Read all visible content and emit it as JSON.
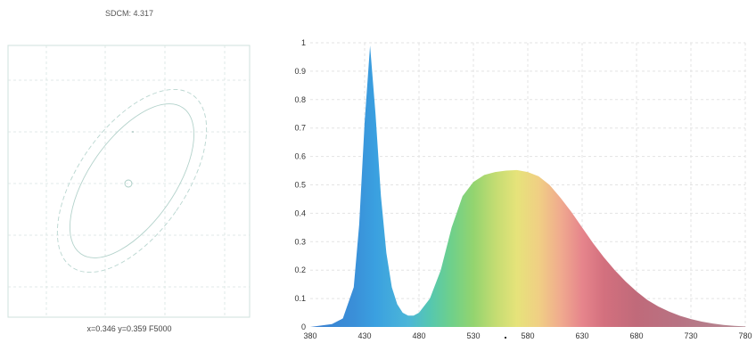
{
  "sdcm_panel": {
    "title": "SDCM: 4.317",
    "coordinate_label": "x=0.346 y=0.359 F5000"
  },
  "chart_data": {
    "type": "area",
    "x_ticks": [
      "380",
      "430",
      "480",
      "530",
      "580",
      "630",
      "680",
      "730",
      "780"
    ],
    "y_ticks": [
      "0",
      "0.1",
      "0.2",
      "0.3",
      "0.4",
      "0.5",
      "0.6",
      "0.7",
      "0.8",
      "0.9",
      "1"
    ],
    "xlim": [
      380,
      780
    ],
    "ylim": [
      0,
      1
    ],
    "grid": true,
    "fill": "visible-spectrum gradient",
    "series": [
      {
        "x": [
          380,
          400,
          410,
          420,
          425,
          430,
          435,
          440,
          445,
          450,
          455,
          460,
          465,
          470,
          475,
          480,
          490,
          500,
          510,
          520,
          530,
          540,
          550,
          560,
          570,
          580,
          590,
          600,
          610,
          620,
          630,
          640,
          650,
          660,
          670,
          680,
          690,
          700,
          710,
          720,
          730,
          740,
          750,
          760,
          770,
          780
        ],
        "values": [
          0.0,
          0.01,
          0.03,
          0.14,
          0.36,
          0.72,
          0.99,
          0.75,
          0.46,
          0.26,
          0.14,
          0.08,
          0.05,
          0.04,
          0.04,
          0.05,
          0.1,
          0.2,
          0.35,
          0.46,
          0.51,
          0.535,
          0.545,
          0.55,
          0.552,
          0.545,
          0.53,
          0.5,
          0.455,
          0.405,
          0.35,
          0.295,
          0.245,
          0.2,
          0.16,
          0.125,
          0.095,
          0.072,
          0.054,
          0.039,
          0.028,
          0.019,
          0.012,
          0.007,
          0.004,
          0.002
        ]
      }
    ]
  }
}
